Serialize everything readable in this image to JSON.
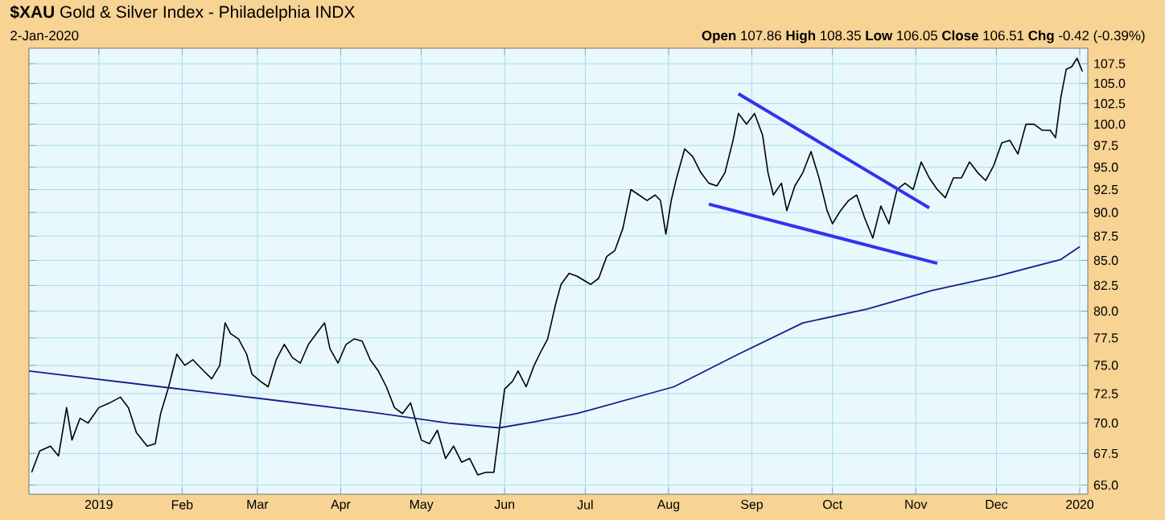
{
  "chart_data": {
    "type": "line",
    "title": "**$XAU** Gold & Silver Index - Philadelphia INDX",
    "subtitle": "2-Jan-2020",
    "annotations": [
      "**Open** 107.86 **High** 108.35 **Low** 106.05 **Close** 106.51 **Chg** -0.42 (-0.39%)"
    ],
    "log": true,
    "grid": true,
    "line_style": "solid",
    "xlim": [
      "2018-12-06",
      "2020-01-04"
    ],
    "ylim": [
      64.3,
      109.5
    ],
    "xticks": [
      {
        "value": "2019-01-01",
        "label": "2019"
      },
      {
        "value": "2019-02-01",
        "label": "Feb"
      },
      {
        "value": "2019-03-01",
        "label": "Mar"
      },
      {
        "value": "2019-04-01",
        "label": "Apr"
      },
      {
        "value": "2019-05-01",
        "label": "May"
      },
      {
        "value": "2019-06-01",
        "label": "Jun"
      },
      {
        "value": "2019-07-01",
        "label": "Jul"
      },
      {
        "value": "2019-08-01",
        "label": "Aug"
      },
      {
        "value": "2019-09-01",
        "label": "Sep"
      },
      {
        "value": "2019-10-01",
        "label": "Oct"
      },
      {
        "value": "2019-11-01",
        "label": "Nov"
      },
      {
        "value": "2019-12-01",
        "label": "Dec"
      },
      {
        "value": "2020-01-01",
        "label": "2020"
      }
    ],
    "yticks": [
      {
        "value": 65,
        "label": "65.0"
      },
      {
        "value": 67.5,
        "label": "67.5"
      },
      {
        "value": 70,
        "label": "70.0"
      },
      {
        "value": 72.5,
        "label": "72.5"
      },
      {
        "value": 75,
        "label": "75.0"
      },
      {
        "value": 77.5,
        "label": "77.5"
      },
      {
        "value": 80,
        "label": "80.0"
      },
      {
        "value": 82.5,
        "label": "82.5"
      },
      {
        "value": 85,
        "label": "85.0"
      },
      {
        "value": 87.5,
        "label": "87.5"
      },
      {
        "value": 90,
        "label": "90.0"
      },
      {
        "value": 92.5,
        "label": "92.5"
      },
      {
        "value": 95,
        "label": "95.0"
      },
      {
        "value": 97.5,
        "label": "97.5"
      },
      {
        "value": 100,
        "label": "100.0"
      },
      {
        "value": 102.5,
        "label": "102.5"
      },
      {
        "value": 105,
        "label": "105.0"
      },
      {
        "value": 107.5,
        "label": "107.5"
      }
    ],
    "series": [
      {
        "color": "#000000",
        "x": [
          "2018-12-07",
          "2018-12-10",
          "2018-12-14",
          "2018-12-17",
          "2018-12-20",
          "2018-12-22",
          "2018-12-25",
          "2018-12-28",
          "2019-01-01",
          "2019-01-05",
          "2019-01-09",
          "2019-01-12",
          "2019-01-15",
          "2019-01-19",
          "2019-01-22",
          "2019-01-24",
          "2019-01-27",
          "2019-01-30",
          "2019-02-02",
          "2019-02-05",
          "2019-02-09",
          "2019-02-12",
          "2019-02-15",
          "2019-02-17",
          "2019-02-19",
          "2019-02-22",
          "2019-02-25",
          "2019-02-27",
          "2019-03-02",
          "2019-03-05",
          "2019-03-08",
          "2019-03-11",
          "2019-03-14",
          "2019-03-17",
          "2019-03-20",
          "2019-03-23",
          "2019-03-26",
          "2019-03-28",
          "2019-03-31",
          "2019-04-03",
          "2019-04-06",
          "2019-04-09",
          "2019-04-12",
          "2019-04-15",
          "2019-04-18",
          "2019-04-21",
          "2019-04-24",
          "2019-04-27",
          "2019-05-01",
          "2019-05-04",
          "2019-05-07",
          "2019-05-10",
          "2019-05-13",
          "2019-05-16",
          "2019-05-19",
          "2019-05-22",
          "2019-05-25",
          "2019-05-28",
          "2019-05-30",
          "2019-06-01",
          "2019-06-04",
          "2019-06-06",
          "2019-06-09",
          "2019-06-12",
          "2019-06-14",
          "2019-06-17",
          "2019-06-20",
          "2019-06-22",
          "2019-06-25",
          "2019-06-28",
          "2019-07-03",
          "2019-07-06",
          "2019-07-09",
          "2019-07-12",
          "2019-07-15",
          "2019-07-18",
          "2019-07-21",
          "2019-07-24",
          "2019-07-27",
          "2019-07-29",
          "2019-07-31",
          "2019-08-02",
          "2019-08-04",
          "2019-08-07",
          "2019-08-10",
          "2019-08-13",
          "2019-08-16",
          "2019-08-19",
          "2019-08-22",
          "2019-08-25",
          "2019-08-27",
          "2019-08-30",
          "2019-09-02",
          "2019-09-05",
          "2019-09-07",
          "2019-09-09",
          "2019-09-12",
          "2019-09-14",
          "2019-09-17",
          "2019-09-20",
          "2019-09-23",
          "2019-09-26",
          "2019-09-29",
          "2019-10-01",
          "2019-10-04",
          "2019-10-07",
          "2019-10-10",
          "2019-10-13",
          "2019-10-16",
          "2019-10-19",
          "2019-10-22",
          "2019-10-25",
          "2019-10-28",
          "2019-10-31",
          "2019-11-03",
          "2019-11-06",
          "2019-11-09",
          "2019-11-12",
          "2019-11-15",
          "2019-11-18",
          "2019-11-21",
          "2019-11-24",
          "2019-11-27",
          "2019-11-30",
          "2019-12-03",
          "2019-12-06",
          "2019-12-09",
          "2019-12-12",
          "2019-12-15",
          "2019-12-18",
          "2019-12-21",
          "2019-12-23",
          "2019-12-25",
          "2019-12-27",
          "2019-12-29",
          "2019-12-31",
          "2020-01-02"
        ],
        "values": [
          66.0,
          67.7,
          68.1,
          67.3,
          71.3,
          68.6,
          70.4,
          70.0,
          71.3,
          71.7,
          72.2,
          71.3,
          69.2,
          68.1,
          68.3,
          70.8,
          73.1,
          76.0,
          75.0,
          75.5,
          74.5,
          73.8,
          75.0,
          78.9,
          77.9,
          77.4,
          76.0,
          74.2,
          73.6,
          73.1,
          75.5,
          76.9,
          75.7,
          75.2,
          76.9,
          77.9,
          78.9,
          76.5,
          75.2,
          76.9,
          77.4,
          77.2,
          75.5,
          74.5,
          73.1,
          71.3,
          70.8,
          71.7,
          68.6,
          68.3,
          69.4,
          67.1,
          68.1,
          66.8,
          67.1,
          65.8,
          66.0,
          66.0,
          69.4,
          72.9,
          73.6,
          74.5,
          73.1,
          75.0,
          76.0,
          77.4,
          80.7,
          82.6,
          83.7,
          83.4,
          82.6,
          83.2,
          85.4,
          86.0,
          88.3,
          92.5,
          91.9,
          91.3,
          91.9,
          91.3,
          87.7,
          91.3,
          93.8,
          97.1,
          96.2,
          94.4,
          93.2,
          92.9,
          94.4,
          98.1,
          101.3,
          100.0,
          101.3,
          98.7,
          94.4,
          91.9,
          93.2,
          90.2,
          92.9,
          94.4,
          96.8,
          93.8,
          90.2,
          88.8,
          90.2,
          91.3,
          91.9,
          89.4,
          87.3,
          90.7,
          88.8,
          92.5,
          93.2,
          92.5,
          95.6,
          93.8,
          92.5,
          91.6,
          93.8,
          93.8,
          95.6,
          94.4,
          93.5,
          95.2,
          97.8,
          98.1,
          96.5,
          100.0,
          100.0,
          99.3,
          99.3,
          98.4,
          103.3,
          106.8,
          107.1,
          108.2,
          106.5
        ]
      },
      {
        "color": "#1c1c8c",
        "x": [
          "2018-12-06",
          "2019-01-24",
          "2019-03-05",
          "2019-04-13",
          "2019-05-11",
          "2019-05-30",
          "2019-06-12",
          "2019-06-28",
          "2019-08-03",
          "2019-08-27",
          "2019-09-20",
          "2019-10-14",
          "2019-11-07",
          "2019-12-01",
          "2019-12-25",
          "2020-01-01"
        ],
        "values": [
          74.5,
          73.1,
          72.0,
          70.9,
          70.0,
          69.6,
          70.1,
          70.8,
          73.1,
          76.0,
          78.9,
          80.2,
          82.0,
          83.4,
          85.1,
          86.4
        ]
      },
      {
        "color": "#3333ee",
        "x": [
          "2019-08-27",
          "2019-11-06"
        ],
        "values": [
          103.7,
          90.5
        ]
      },
      {
        "color": "#3333ee",
        "x": [
          "2019-08-16",
          "2019-11-09"
        ],
        "values": [
          90.9,
          84.7
        ]
      }
    ]
  }
}
